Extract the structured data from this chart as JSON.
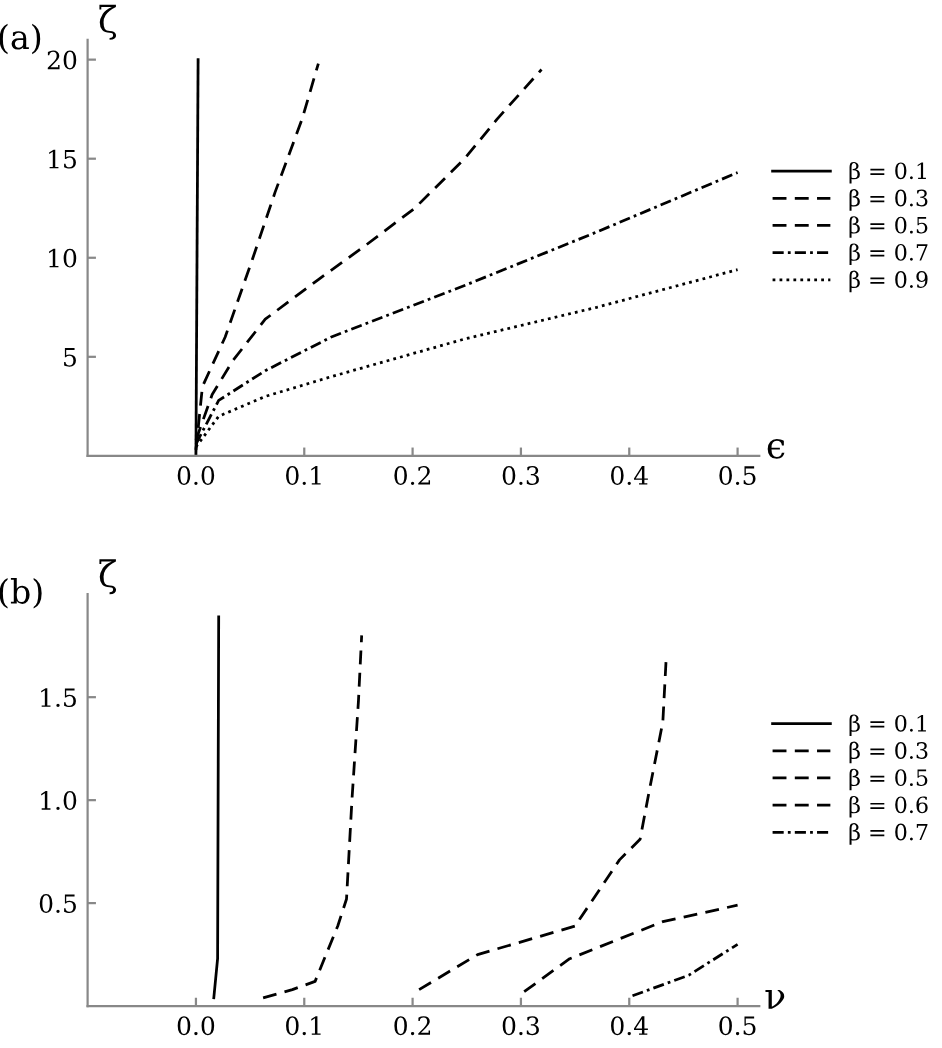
{
  "chart_data": [
    {
      "type": "line",
      "title": "(a)",
      "xlabel": "ϵ",
      "ylabel": "ζ",
      "xlim": [
        -0.1,
        0.52
      ],
      "ylim": [
        0,
        21
      ],
      "xticks": [
        {
          "value": 0,
          "label": "0.0"
        },
        0.1,
        0.2,
        0.3,
        0.4,
        0.5
      ],
      "yticks": [
        5,
        10,
        15,
        20
      ],
      "grid": false,
      "legend": "right",
      "marker": "none",
      "series": [
        {
          "name": "β = 0.1",
          "color": "#000000",
          "line_style": "solid",
          "x": [
            0,
            0.002
          ],
          "values": [
            0,
            20
          ]
        },
        {
          "name": "β = 0.3",
          "color": "#000000",
          "line_style": "dashed",
          "x": [
            0,
            0.006,
            0.027,
            0.052,
            0.073,
            0.098,
            0.113
          ],
          "values": [
            0.3,
            3.5,
            6,
            9.9,
            13.3,
            17,
            19.8
          ]
        },
        {
          "name": "β = 0.5",
          "color": "#000000",
          "line_style": "dashed",
          "x": [
            0,
            0.015,
            0.034,
            0.064,
            0.113,
            0.156,
            0.202,
            0.248,
            0.278,
            0.319
          ],
          "values": [
            0.8,
            3.1,
            4.8,
            6.9,
            8.9,
            10.6,
            12.5,
            15,
            17,
            19.5
          ]
        },
        {
          "name": "β = 0.7",
          "color": "#000000",
          "line_style": "dashdot",
          "x": [
            0,
            0.021,
            0.064,
            0.125,
            0.248,
            0.37,
            0.5
          ],
          "values": [
            0.6,
            2.8,
            4.3,
            6.0,
            8.6,
            11.3,
            14.3
          ]
        },
        {
          "name": "β = 0.9",
          "color": "#000000",
          "line_style": "dotted",
          "x": [
            0,
            0.021,
            0.064,
            0.125,
            0.248,
            0.37,
            0.5
          ],
          "values": [
            0.45,
            2.0,
            3.0,
            4.0,
            5.9,
            7.5,
            9.4
          ]
        }
      ]
    },
    {
      "type": "line",
      "title": "(b)",
      "xlabel": "ν",
      "ylabel": "ζ",
      "xlim": [
        -0.1,
        0.52
      ],
      "ylim": [
        0,
        2
      ],
      "xticks": [
        {
          "value": 0,
          "label": "0.0"
        },
        0.1,
        0.2,
        0.3,
        0.4,
        0.5
      ],
      "yticks": [
        0.5,
        {
          "value": 1.0,
          "label": "1.0"
        },
        1.5
      ],
      "grid": false,
      "legend": "right",
      "marker": "none",
      "series": [
        {
          "name": "β = 0.1",
          "color": "#000000",
          "line_style": "solid",
          "x": [
            0.0165,
            0.02,
            0.021
          ],
          "values": [
            0.04,
            0.23,
            1.89
          ]
        },
        {
          "name": "β = 0.3",
          "color": "#000000",
          "line_style": "dashed",
          "x": [
            0.062,
            0.089,
            0.11,
            0.131,
            0.139,
            0.144,
            0.15,
            0.153
          ],
          "values": [
            0.04,
            0.08,
            0.12,
            0.39,
            0.52,
            1.0,
            1.48,
            1.8
          ]
        },
        {
          "name": "β = 0.5",
          "color": "#000000",
          "line_style": "dashed",
          "x": [
            0.206,
            0.26,
            0.351,
            0.354,
            0.391,
            0.41,
            0.419,
            0.431,
            0.434
          ],
          "values": [
            0.08,
            0.25,
            0.39,
            0.42,
            0.71,
            0.81,
            1.06,
            1.38,
            1.68
          ]
        },
        {
          "name": "β = 0.6",
          "color": "#000000",
          "line_style": "dashed",
          "x": [
            0.303,
            0.345,
            0.431,
            0.5
          ],
          "values": [
            0.07,
            0.23,
            0.41,
            0.49
          ]
        },
        {
          "name": "β = 0.7",
          "color": "#000000",
          "line_style": "dashdot",
          "x": [
            0.403,
            0.455,
            0.5
          ],
          "values": [
            0.05,
            0.15,
            0.3
          ]
        }
      ]
    }
  ]
}
